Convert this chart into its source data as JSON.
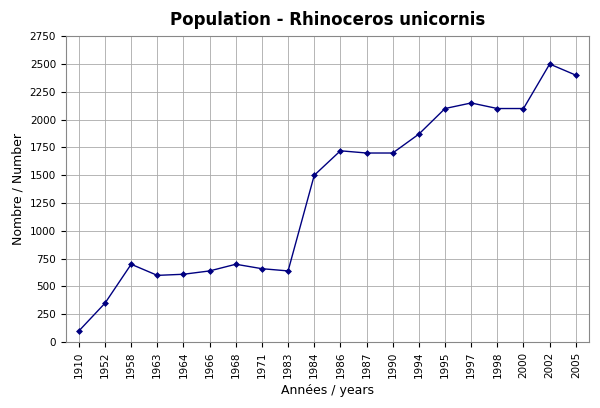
{
  "title": "Population - Rhinoceros unicornis",
  "xlabel": "Années / years",
  "ylabel": "Nombre / Number",
  "years": [
    "1910",
    "1952",
    "1958",
    "1963",
    "1964",
    "1966",
    "1968",
    "1971",
    "1983",
    "1984",
    "1986",
    "1987",
    "1990",
    "1994",
    "1995",
    "1997",
    "1998",
    "2000",
    "2002",
    "2005"
  ],
  "values": [
    100,
    350,
    700,
    600,
    610,
    640,
    700,
    660,
    640,
    1500,
    1720,
    1700,
    1700,
    1870,
    2100,
    2150,
    2100,
    2100,
    2500,
    2400
  ],
  "line_color": "#000080",
  "marker": "D",
  "marker_size": 3,
  "ylim": [
    0,
    2750
  ],
  "yticks": [
    0,
    250,
    500,
    750,
    1000,
    1250,
    1500,
    1750,
    2000,
    2250,
    2500,
    2750
  ],
  "bg_color": "#ffffff",
  "grid_color": "#aaaaaa",
  "title_fontsize": 12,
  "label_fontsize": 9,
  "tick_fontsize": 7.5
}
